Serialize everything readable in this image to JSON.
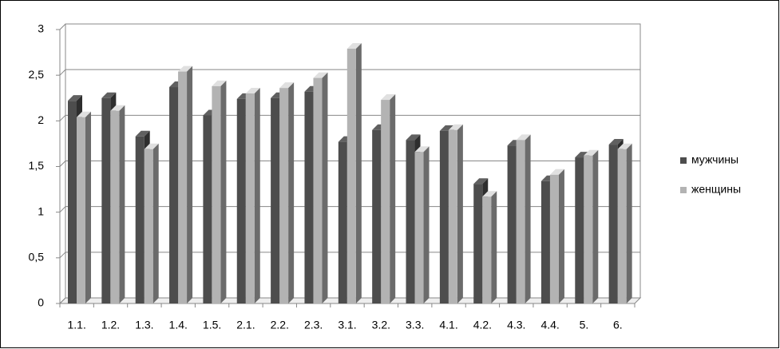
{
  "chart_data": {
    "type": "bar3d",
    "categories": [
      "1.1.",
      "1.2.",
      "1.3.",
      "1.4.",
      "1.5.",
      "2.1.",
      "2.2.",
      "2.3.",
      "3.1.",
      "3.2.",
      "3.3.",
      "4.1.",
      "4.2.",
      "4.3.",
      "4.4.",
      "5.",
      "6."
    ],
    "series": [
      {
        "name": "мужчины",
        "color": "#4d4d4d",
        "values": [
          2.22,
          2.25,
          1.83,
          2.37,
          2.06,
          2.24,
          2.25,
          2.32,
          1.77,
          1.9,
          1.79,
          1.89,
          1.31,
          1.73,
          1.34,
          1.6,
          1.74
        ]
      },
      {
        "name": "женщины",
        "color": "#b3b3b3",
        "values": [
          2.04,
          2.11,
          1.69,
          2.54,
          2.38,
          2.3,
          2.36,
          2.47,
          2.79,
          2.23,
          1.66,
          1.9,
          1.17,
          1.79,
          1.41,
          1.62,
          1.69
        ]
      }
    ],
    "ylim": [
      0,
      3
    ],
    "yticks": [
      0,
      {
        "value": 0.5,
        "label": "0,5"
      },
      1,
      {
        "value": 1.5,
        "label": "1,5"
      },
      2,
      {
        "value": 2.5,
        "label": "2,5"
      },
      3
    ],
    "grid": true,
    "legend": "right"
  }
}
